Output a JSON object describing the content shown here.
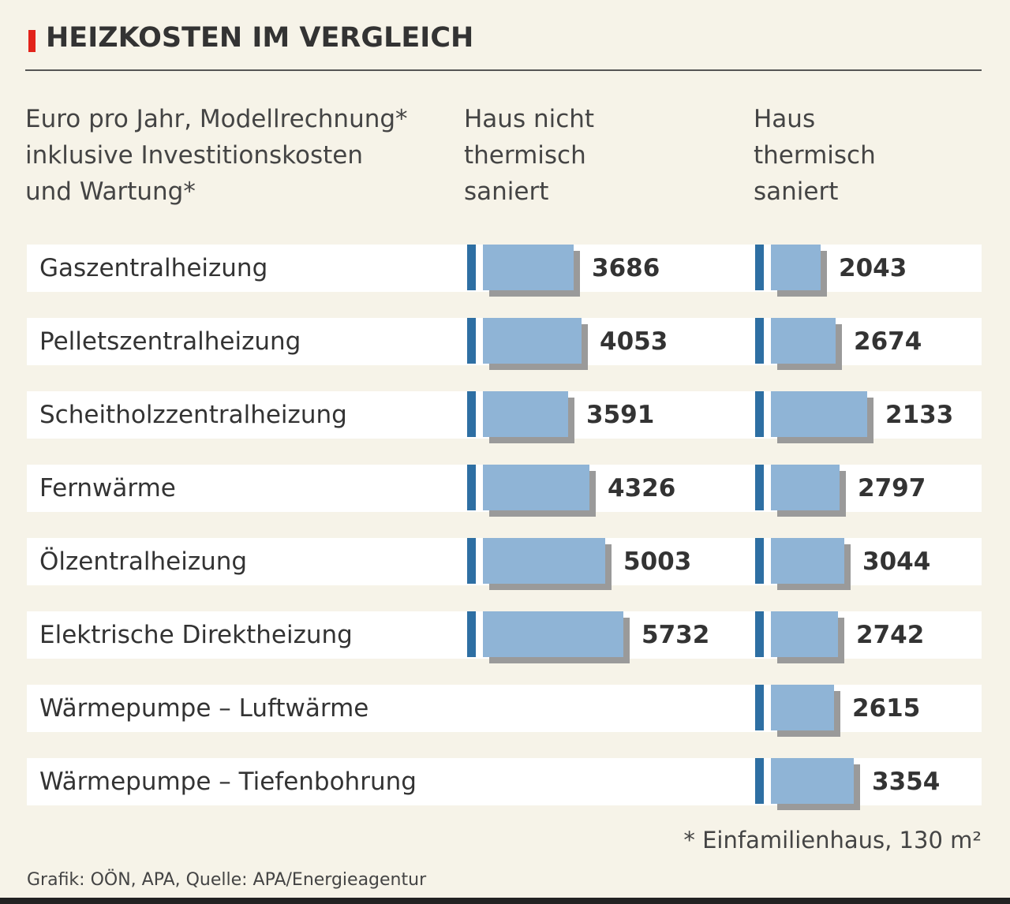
{
  "header": {
    "title": "HEIZKOSTEN IM VERGLEICH",
    "accent_color": "#e2231a"
  },
  "subtitle_lines": [
    "Euro pro Jahr, Modellrechnung*",
    "inklusive Investitionskosten",
    "und Wartung*"
  ],
  "column_headers": {
    "not_renovated": [
      "Haus nicht",
      "thermisch",
      "saniert"
    ],
    "renovated": [
      "Haus",
      "thermisch",
      "saniert"
    ]
  },
  "footnote": "* Einfamilienhaus, 130 m²",
  "source": "Grafik: OÖN, APA, Quelle: APA/Energieagentur",
  "colors": {
    "bar_fill": "#8fb4d6",
    "bar_marker": "#2e6fa3",
    "bar_shadow": "#9a9a9a",
    "background": "#f6f3e8"
  },
  "chart_data": {
    "type": "bar",
    "orientation": "horizontal",
    "title": "HEIZKOSTEN IM VERGLEICH",
    "categories": [
      "Gaszentralheizung",
      "Pelletszentralheizung",
      "Scheitholzzentralheizung",
      "Fernwärme",
      "Ölzentralheizung",
      "Elektrische Direktheizung",
      "Wärmepumpe – Luftwärme",
      "Wärmepumpe – Tiefenbohrung"
    ],
    "series": [
      {
        "name": "Haus nicht thermisch saniert",
        "values": [
          3686,
          4053,
          3591,
          4326,
          5003,
          5732,
          null,
          null
        ]
      },
      {
        "name": "Haus thermisch saniert",
        "values": [
          2043,
          2674,
          2133,
          2797,
          3044,
          2742,
          2615,
          3354
        ]
      }
    ],
    "grid": false,
    "legend": "column headers at top"
  }
}
